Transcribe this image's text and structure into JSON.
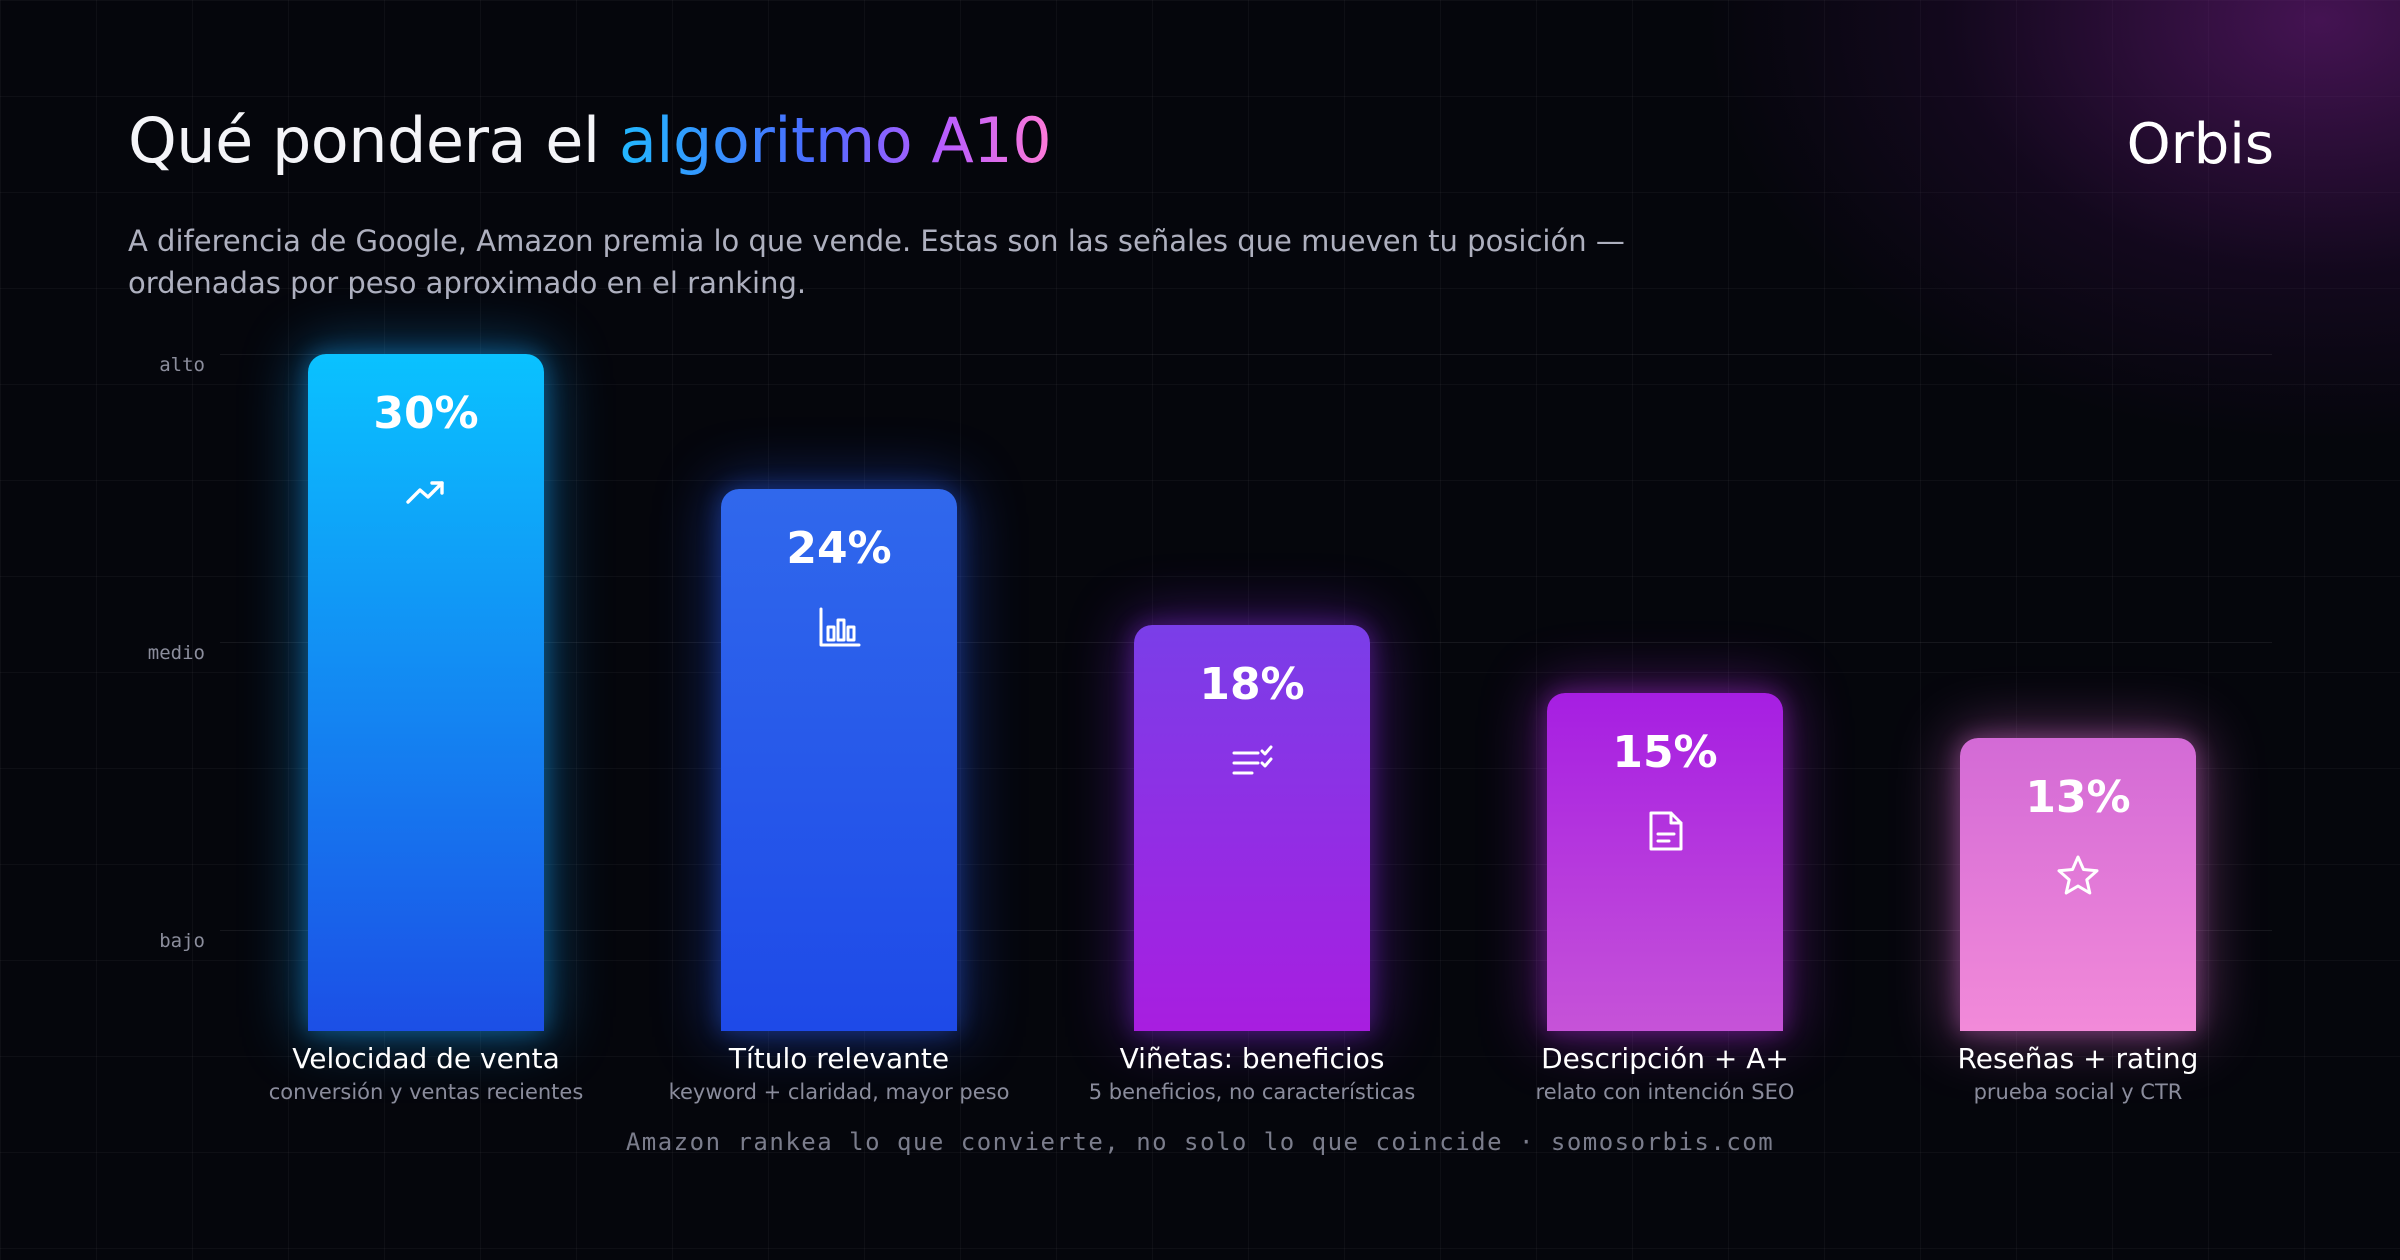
{
  "header": {
    "title_pre": "Qué pondera el ",
    "title_accent": "algoritmo A10",
    "logo": "Orbis",
    "subtitle": "A diferencia de Google, Amazon premia lo que vende. Estas son las señales que mueven tu posición — ordenadas por peso aproximado en el ranking."
  },
  "levels": [
    "alto",
    "medio",
    "bajo"
  ],
  "chart_data": {
    "type": "bar",
    "categories": [
      "Velocidad de venta",
      "Título relevante",
      "Viñetas: beneficios",
      "Descripción + A+",
      "Reseñas + rating"
    ],
    "subtitles": [
      "conversión y ventas recientes",
      "keyword + claridad, mayor peso",
      "5 beneficios, no características",
      "relato con intención SEO",
      "prueba social y CTR"
    ],
    "values": [
      30,
      24,
      18,
      15,
      13
    ],
    "value_labels": [
      "30%",
      "24%",
      "18%",
      "15%",
      "13%"
    ],
    "icons": [
      "trending-up-icon",
      "bar-chart-icon",
      "checklist-icon",
      "document-icon",
      "star-icon"
    ],
    "colors": [
      [
        "#0ac2ff",
        "#1c4fe6"
      ],
      [
        "#3068ec",
        "#1e4ae8"
      ],
      [
        "#7a3ee8",
        "#a81ee0"
      ],
      [
        "#a61ee2",
        "#c653d8"
      ],
      [
        "#d36ad6",
        "#f28ad9"
      ]
    ],
    "glow": [
      "#19a8ff",
      "#2b5cf0",
      "#8a2be6",
      "#b02ee0",
      "#e070d8"
    ],
    "ylabel": "",
    "ylim": [
      0,
      30
    ]
  },
  "footer": "Amazon rankea lo que convierte, no solo lo que coincide · somosorbis.com"
}
